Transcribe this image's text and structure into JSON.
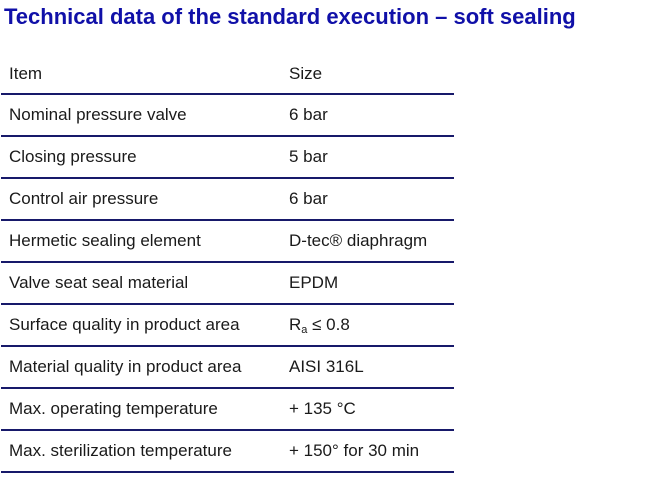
{
  "title": "Technical data of the standard execution – soft sealing",
  "colors": {
    "title": "#1010a8",
    "rule": "#17196a",
    "text": "#1a1a1a"
  },
  "table": {
    "headers": [
      "Item",
      "Size"
    ],
    "rows": [
      {
        "item": "Nominal pressure valve",
        "size": "6 bar"
      },
      {
        "item": "Closing pressure",
        "size": "5 bar"
      },
      {
        "item": "Control air pressure",
        "size": "6 bar"
      },
      {
        "item": "Hermetic sealing element",
        "size": "D-tec® diaphragm"
      },
      {
        "item": "Valve seat seal material",
        "size": "EPDM"
      },
      {
        "item": "Surface quality in product area",
        "size_prefix": "R",
        "size_sub": "a",
        "size_suffix": " ≤ 0.8"
      },
      {
        "item": "Material quality in product area",
        "size": "AISI 316L"
      },
      {
        "item": "Max. operating temperature",
        "size": "+ 135 °C"
      },
      {
        "item": "Max. sterilization temperature",
        "size": "+ 150° for 30 min"
      }
    ]
  }
}
